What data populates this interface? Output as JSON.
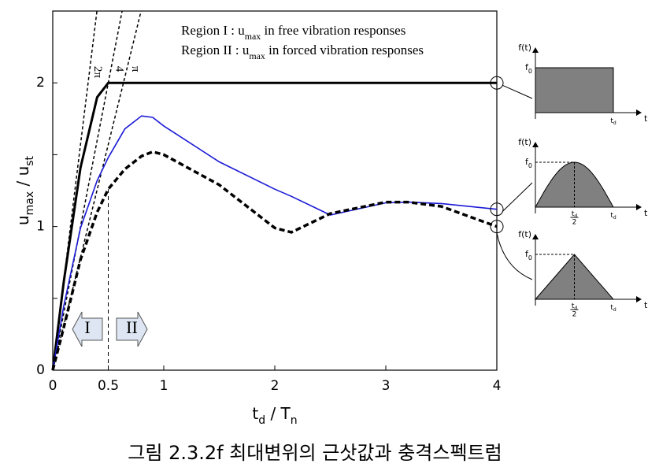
{
  "chart_data": {
    "type": "line",
    "xlabel": [
      "t",
      "d",
      " / T",
      "n"
    ],
    "ylabel": [
      "u",
      "max",
      " / u",
      "st"
    ],
    "caption": "그림 2.3.2f 최대변위의 근삿값과 충격스펙트럼",
    "notes": [
      [
        "Region I  : ",
        "u",
        "max",
        " in free vibration responses"
      ],
      [
        "Region II : ",
        "u",
        "max",
        " in forced vibration responses"
      ]
    ],
    "region_arrows": [
      "I",
      "II"
    ],
    "x": [
      0,
      0.1,
      0.25,
      0.4,
      0.5,
      0.65,
      0.8,
      0.9,
      1,
      1.5,
      2,
      2.15,
      2.5,
      3,
      3.2,
      3.5,
      4
    ],
    "series": [
      {
        "color": "#000000",
        "line_width": 3,
        "dashed": false,
        "values": [
          0,
          0.62,
          1.41,
          1.9,
          2,
          2,
          2,
          2,
          2,
          2,
          2,
          2,
          2,
          2,
          2,
          2,
          2
        ]
      },
      {
        "color": "#1a1ad6",
        "line_width": 1.6,
        "dashed": false,
        "values": [
          0,
          0.45,
          0.99,
          1.32,
          1.48,
          1.68,
          1.77,
          1.76,
          1.7,
          1.45,
          1.26,
          1.21,
          1.08,
          1.165,
          1.17,
          1.16,
          1.12
        ]
      },
      {
        "color": "#000000",
        "line_width": 3.5,
        "dashed": true,
        "values": [
          0,
          0.3,
          0.77,
          1.1,
          1.26,
          1.4,
          1.49,
          1.52,
          1.5,
          1.29,
          0.99,
          0.96,
          1.09,
          1.17,
          1.17,
          1.14,
          1
        ]
      }
    ],
    "reference_lines": [
      {
        "label": "2π",
        "slope": 6.283
      },
      {
        "label": "4",
        "slope": 4
      },
      {
        "label": "π",
        "slope": 3.1416
      }
    ],
    "xlim": [
      0,
      4
    ],
    "xticks": [
      0,
      0.5,
      1,
      2,
      3,
      4
    ],
    "ylim": [
      0,
      2.5
    ],
    "yticks": [
      0,
      1,
      2
    ],
    "yminor_ticks": [
      0.5,
      1.5
    ],
    "inset_labels": {
      "ft": "f(t)",
      "f": "f",
      "zero": "0",
      "t": "t",
      "d": "d",
      "two": "2"
    },
    "insets": [
      "rect",
      "sine",
      "triangle"
    ]
  }
}
